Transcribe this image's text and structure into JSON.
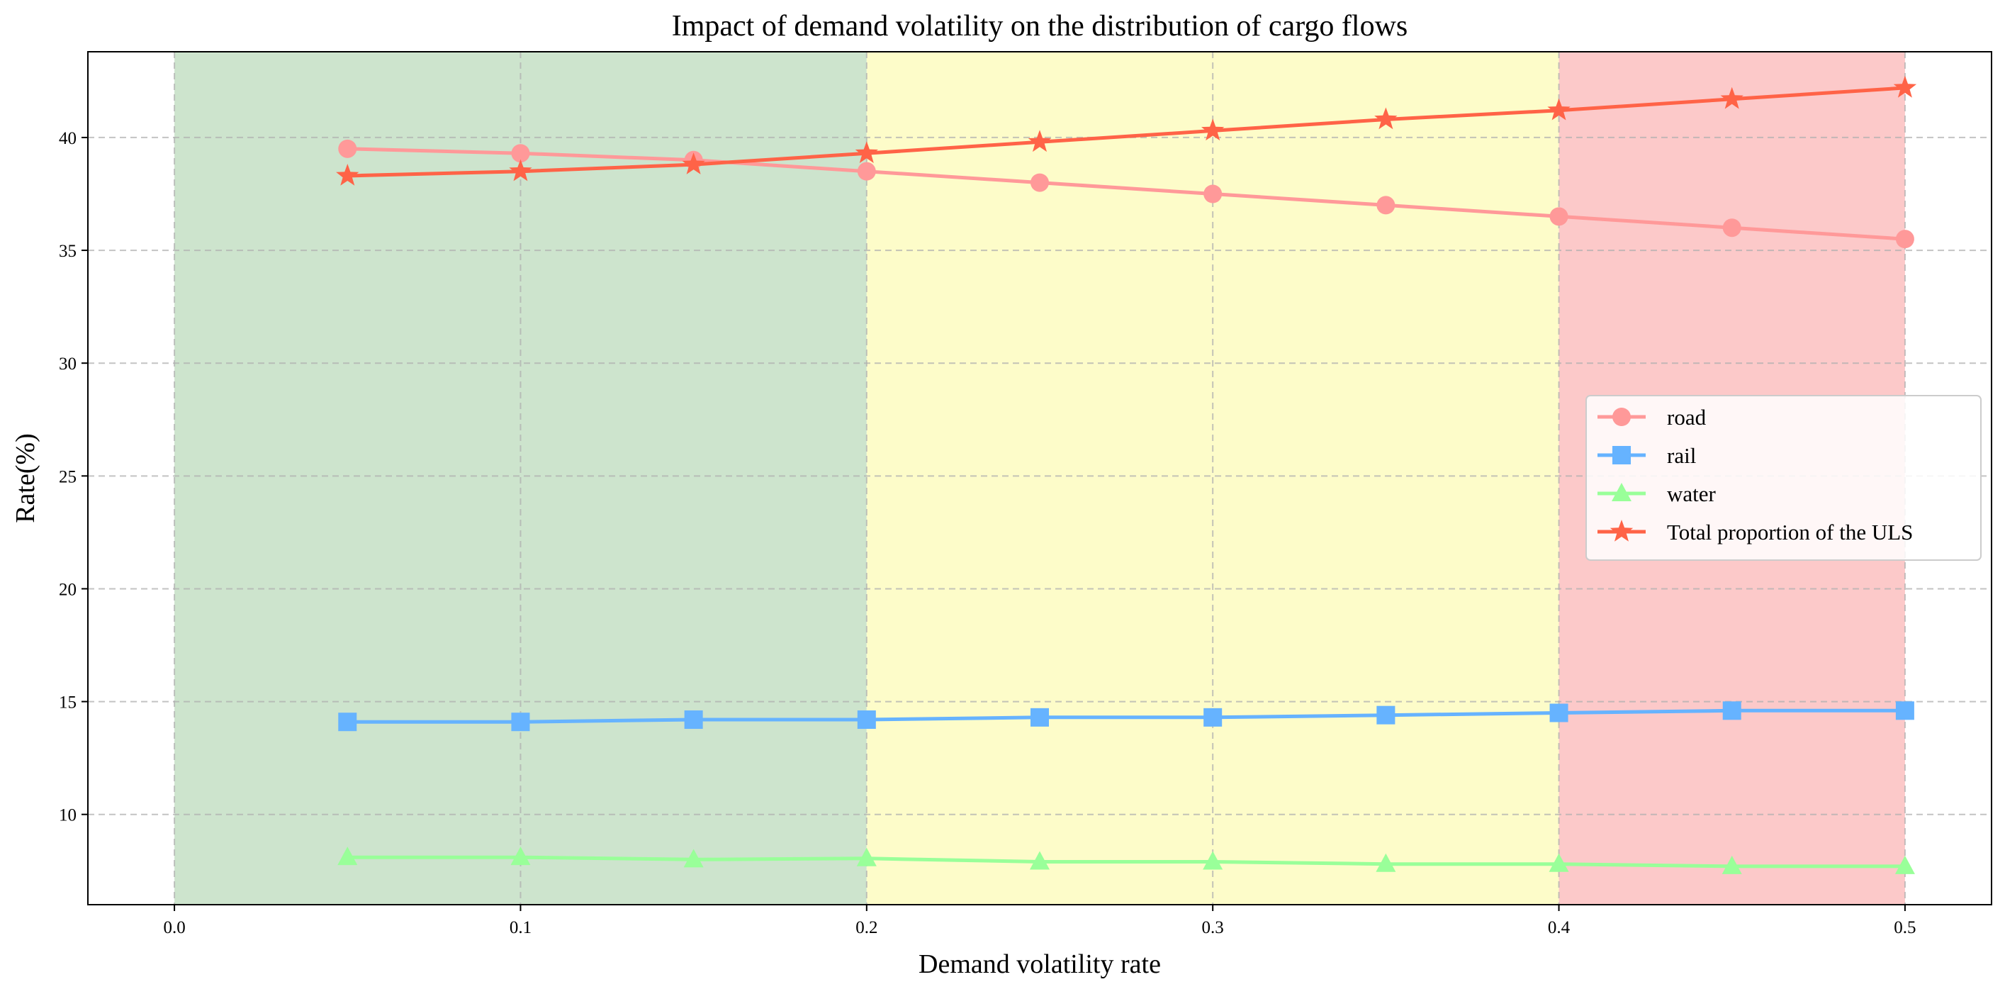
{
  "chart_data": {
    "type": "line",
    "title": "Impact of demand volatility on the distribution of cargo flows",
    "xlabel": "Demand volatility rate",
    "ylabel": "Rate(%)",
    "xlim": [
      -0.025,
      0.525
    ],
    "ylim": [
      6.0,
      43.8
    ],
    "xticks": [
      0.0,
      0.1,
      0.2,
      0.3,
      0.4,
      0.5
    ],
    "xtick_labels": [
      "0.0",
      "0.1",
      "0.2",
      "0.3",
      "0.4",
      "0.5"
    ],
    "yticks": [
      10,
      15,
      20,
      25,
      30,
      35,
      40
    ],
    "ytick_labels": [
      "10",
      "15",
      "20",
      "25",
      "30",
      "35",
      "40"
    ],
    "grid": true,
    "legend_position": "center-right",
    "regions": [
      {
        "x0": 0.0,
        "x1": 0.2,
        "color": "#cde4cd"
      },
      {
        "x0": 0.2,
        "x1": 0.4,
        "color": "#fdfcc9"
      },
      {
        "x0": 0.4,
        "x1": 0.5,
        "color": "#fcc9c9"
      }
    ],
    "x": [
      0.05,
      0.1,
      0.15,
      0.2,
      0.25,
      0.3,
      0.35,
      0.4,
      0.45,
      0.5
    ],
    "series": [
      {
        "name": "road",
        "color": "#ff9999",
        "marker": "circle",
        "values": [
          39.5,
          39.3,
          39.0,
          38.5,
          38.0,
          37.5,
          37.0,
          36.5,
          36.0,
          35.5
        ]
      },
      {
        "name": "rail",
        "color": "#66b3ff",
        "marker": "square",
        "values": [
          14.1,
          14.1,
          14.2,
          14.2,
          14.3,
          14.3,
          14.4,
          14.5,
          14.6,
          14.6
        ]
      },
      {
        "name": "water",
        "color": "#99ff99",
        "marker": "triangle",
        "values": [
          8.1,
          8.1,
          8.0,
          8.05,
          7.9,
          7.9,
          7.8,
          7.8,
          7.7,
          7.7
        ]
      },
      {
        "name": "Total proportion of the ULS",
        "color": "#ff6347",
        "marker": "star",
        "values": [
          38.3,
          38.5,
          38.8,
          39.3,
          39.8,
          40.3,
          40.8,
          41.2,
          41.7,
          42.2
        ]
      }
    ]
  }
}
